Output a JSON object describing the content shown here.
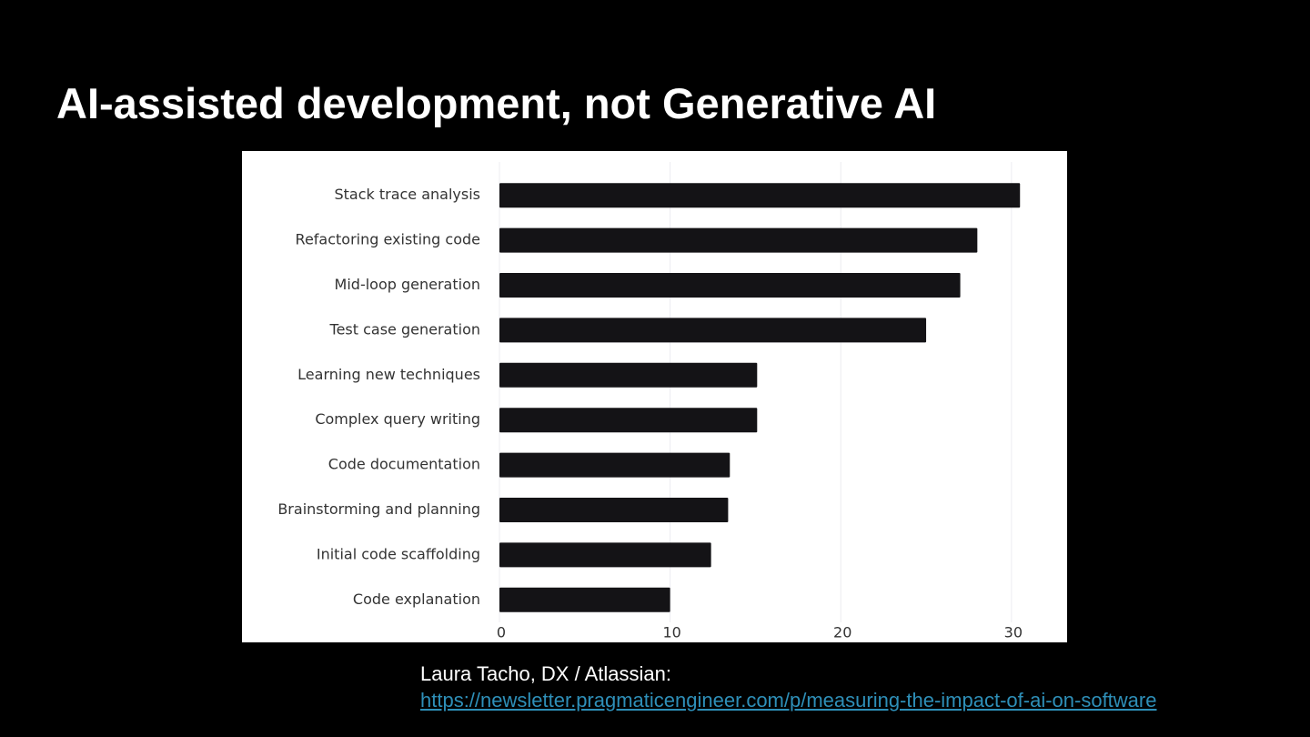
{
  "slide": {
    "title": "AI-assisted development, not Generative AI",
    "caption": "Laura Tacho, DX / Atlassian:",
    "link": "https://newsletter.pragmaticengineer.com/p/measuring-the-impact-of-ai-on-software"
  },
  "chart_data": {
    "type": "bar",
    "orientation": "horizontal",
    "categories": [
      "Stack trace analysis",
      "Refactoring existing code",
      "Mid-loop generation",
      "Test case generation",
      "Learning new techniques",
      "Complex query writing",
      "Code documentation",
      "Brainstorming and planning",
      "Initial code scaffolding",
      "Code explanation"
    ],
    "values": [
      30.5,
      28,
      27,
      25,
      15.1,
      15.1,
      13.5,
      13.4,
      12.4,
      10
    ],
    "color": "#141316",
    "xlim": [
      0,
      31.5
    ],
    "xticks": [
      0,
      10,
      20,
      30
    ],
    "grid": true
  }
}
